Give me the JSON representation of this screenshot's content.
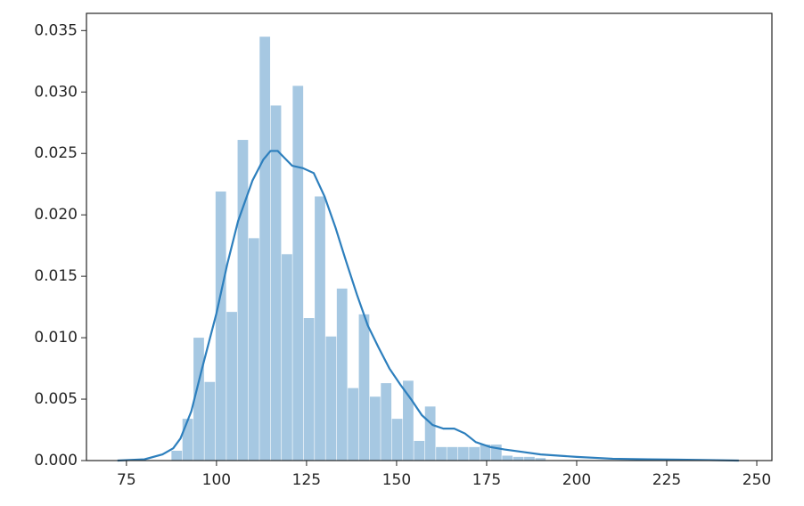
{
  "chart_data": {
    "type": "histogram",
    "bins": [
      87.5,
      90.56,
      93.62,
      96.68,
      99.74,
      102.8,
      105.86,
      108.92,
      111.98,
      115.04,
      118.1,
      121.16,
      124.22,
      127.28,
      130.34,
      133.4,
      136.46,
      139.52,
      142.58,
      145.64,
      148.7,
      151.76,
      154.82,
      157.88,
      160.94,
      164.0,
      167.06,
      170.12,
      173.18,
      176.24,
      179.3,
      182.36,
      185.42,
      188.48,
      191.54
    ],
    "values": [
      0.0008,
      0.0034,
      0.01,
      0.0064,
      0.0219,
      0.0121,
      0.0261,
      0.0181,
      0.0345,
      0.0289,
      0.0168,
      0.0305,
      0.0116,
      0.0215,
      0.0101,
      0.014,
      0.0059,
      0.0119,
      0.0052,
      0.0063,
      0.0034,
      0.0065,
      0.0016,
      0.0044,
      0.0011,
      0.0011,
      0.0011,
      0.0011,
      0.0013,
      0.0013,
      0.0004,
      0.0003,
      0.0003,
      0.0002
    ],
    "color": "#a6c8e2",
    "kde": {
      "color": "#2d7fbd",
      "x": [
        72.5,
        80,
        85,
        88,
        90,
        93,
        96,
        100,
        103,
        106,
        110,
        113,
        115,
        117,
        119,
        121,
        124,
        127,
        130,
        133,
        136,
        139,
        142,
        145,
        148,
        151,
        154,
        157,
        160,
        163,
        166,
        169,
        172,
        176,
        180,
        185,
        190,
        200,
        210,
        220,
        235,
        245
      ],
      "values": [
        0,
        0.0001,
        0.0005,
        0.001,
        0.0018,
        0.004,
        0.0075,
        0.012,
        0.016,
        0.0195,
        0.0228,
        0.0245,
        0.0252,
        0.0252,
        0.0246,
        0.024,
        0.0238,
        0.0234,
        0.0215,
        0.019,
        0.0162,
        0.0135,
        0.011,
        0.0092,
        0.0075,
        0.0062,
        0.005,
        0.0037,
        0.0029,
        0.0026,
        0.0026,
        0.0022,
        0.0015,
        0.0011,
        0.0009,
        0.0007,
        0.0005,
        0.0003,
        0.00015,
        0.0001,
        5e-05,
        0
      ]
    },
    "xlim": [
      63.9,
      254.2
    ],
    "xticks": [
      75,
      100,
      125,
      150,
      175,
      200,
      225,
      250
    ],
    "ylim": [
      0,
      0.0364
    ],
    "yticks": [
      {
        "value": 0,
        "label": "0.000"
      },
      {
        "value": 0.005,
        "label": "0.005"
      },
      {
        "value": 0.01,
        "label": "0.010"
      },
      {
        "value": 0.015,
        "label": "0.015"
      },
      {
        "value": 0.02,
        "label": "0.020"
      },
      {
        "value": 0.025,
        "label": "0.025"
      },
      {
        "value": 0.03,
        "label": "0.030"
      },
      {
        "value": 0.035,
        "label": "0.035"
      }
    ]
  }
}
